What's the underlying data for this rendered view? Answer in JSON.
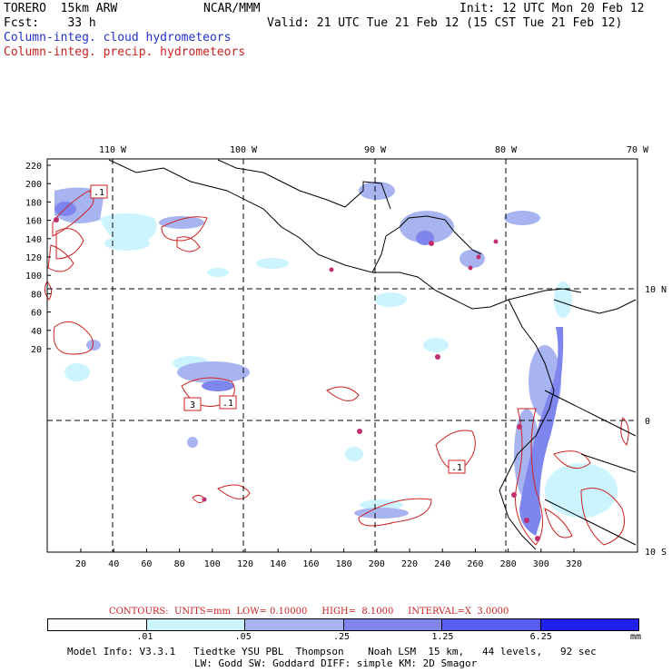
{
  "header": {
    "line1_left": "TORERO  15km ARW",
    "line1_mid": "NCAR/MMM",
    "line1_right": "Init: 12 UTC Mon 20 Feb 12",
    "line2_left": "Fcst:    33 h",
    "line2_right": "Valid: 21 UTC Tue 21 Feb 12 (15 CST Tue 21 Feb 12)",
    "field1": "Column-integ. cloud hydrometeors",
    "field2": "Column-integ. precip. hydrometeors"
  },
  "map": {
    "top_lon_labels": [
      "110 W",
      "100 W",
      "90 W",
      "80 W",
      "70 W"
    ],
    "right_lat_labels": [
      "10 N",
      "0",
      "10 S"
    ],
    "y_ticks": [
      "220",
      "200",
      "180",
      "160",
      "140",
      "120",
      "100",
      "80",
      "60",
      "40",
      "20"
    ],
    "x_ticks": [
      "20",
      "40",
      "60",
      "80",
      "100",
      "120",
      "140",
      "160",
      "180",
      "200",
      "220",
      "240",
      "260",
      "280",
      "300",
      "320"
    ],
    "box_labels": [
      ".1",
      "3",
      ".1",
      ".1"
    ]
  },
  "contours": {
    "text": "CONTOURS:  UNITS=mm  LOW= 0.10000     HIGH=  8.1000     INTERVAL=X  3.0000"
  },
  "colorbar": {
    "colors": [
      "#ffffff",
      "#ccf4ff",
      "#a8b4f0",
      "#7e86ee",
      "#5a5ef0",
      "#2020f0"
    ],
    "labels": [
      ".01",
      ".05",
      ".25",
      "1.25",
      "6.25"
    ],
    "unit": "mm"
  },
  "footer": {
    "line1": "Model Info: V3.3.1   Tiedtke YSU PBL  Thompson    Noah LSM  15 km,   44 levels,   92 sec",
    "line2": "LW: Godd SW: Goddard DIFF: simple KM: 2D Smagor"
  }
}
